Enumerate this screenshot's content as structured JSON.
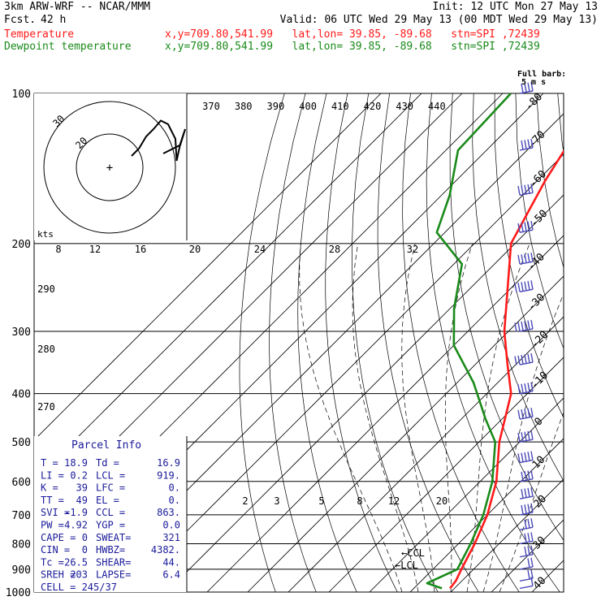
{
  "header": {
    "model": "3km ARW-WRF -- NCAR/MMM",
    "init": "Init: 12 UTC Mon 27 May 13",
    "fcst_label": "Fcst.",
    "fcst_hours": "42 h",
    "valid": "Valid: 06 UTC Wed 29 May 13 (00 MDT Wed 29 May 13)",
    "temp_line_label": "Temperature",
    "dew_line_label": "Dewpoint temperature",
    "loc_text": "x,y=709.80,541.99   lat,lon= 39.85, -89.68   stn=SPI ,72439",
    "barb_note_1": "Full barb:",
    "barb_note_2": "5 m s"
  },
  "colors": {
    "temperature": "#ff1a1a",
    "dewpoint": "#1a8a1a",
    "wind_barbs": "#4a4ab8",
    "grid": "#000000"
  },
  "parcel_info": {
    "title": "Parcel Info",
    "rows": [
      [
        "T  =",
        "18.9",
        "Td =",
        "16.9"
      ],
      [
        "LI =",
        "0.2",
        "LCL =",
        "919."
      ],
      [
        "K  =",
        "39",
        "LFC =",
        "0."
      ],
      [
        "TT =",
        "49",
        "EL  =",
        "0."
      ],
      [
        "SVI =",
        "-1.9",
        "CCL =",
        "863."
      ],
      [
        "PW =",
        "4.92",
        "YGP =",
        "0.0"
      ],
      [
        "CAPE =",
        "0",
        "SWEAT=",
        "321"
      ],
      [
        "CIN  =",
        "0",
        "HWBZ=",
        "4382."
      ],
      [
        "Tc =",
        "26.5",
        "SHEAR=",
        "44."
      ],
      [
        "SREH =",
        "203",
        "LAPSE=",
        "6.4"
      ]
    ],
    "cell": "CELL = 245/37"
  },
  "hodograph": {
    "speed_unit": "kts",
    "ring_labels": [
      "20",
      "30"
    ],
    "theta_e_labels": [
      "370",
      "380",
      "390",
      "400",
      "410",
      "420",
      "430",
      "440"
    ],
    "wind_speed_labels": [
      "8",
      "12",
      "16",
      "20",
      "24",
      "28",
      "32"
    ],
    "theta_labels": [
      "290",
      "280",
      "270"
    ],
    "mixing_ratio_labels": [
      "2",
      "3",
      "5",
      "8",
      "12",
      "20"
    ],
    "marker_labels": [
      "CCL",
      "LCL"
    ],
    "hodo_trace": [
      [
        0.44,
        0.02
      ],
      [
        0.58,
        -0.05
      ],
      [
        0.62,
        -0.18
      ],
      [
        0.58,
        -0.06
      ],
      [
        0.55,
        0.08
      ],
      [
        0.54,
        -0.1
      ],
      [
        0.48,
        -0.22
      ],
      [
        0.42,
        -0.25
      ],
      [
        0.36,
        -0.18
      ],
      [
        0.3,
        -0.12
      ],
      [
        0.24,
        -0.02
      ],
      [
        0.18,
        0.04
      ]
    ]
  },
  "chart_data": {
    "type": "skew-t",
    "y_axis": "pressure (mb)",
    "pressure_levels": [
      100,
      200,
      300,
      400,
      500,
      600,
      700,
      800,
      900,
      1000
    ],
    "isotherm_labels": [
      -80,
      -70,
      -60,
      -50,
      -40,
      -30,
      -20,
      -10,
      0,
      10,
      20,
      30,
      40
    ],
    "ylim": [
      1000,
      100
    ],
    "scale": "log pressure",
    "temperature": {
      "name": "Temperature",
      "p": [
        100,
        150,
        200,
        250,
        300,
        350,
        400,
        500,
        600,
        700,
        800,
        900,
        950,
        983
      ],
      "t": [
        -66,
        -58,
        -51,
        -40,
        -31,
        -22,
        -14,
        -5,
        4,
        10,
        14,
        17,
        18.5,
        18.9
      ]
    },
    "dewpoint": {
      "name": "Dewpoint temperature",
      "p": [
        100,
        130,
        160,
        190,
        220,
        270,
        320,
        380,
        450,
        500,
        600,
        700,
        800,
        900,
        960,
        983
      ],
      "td": [
        -88,
        -87,
        -78,
        -72,
        -58,
        -49,
        -40,
        -26,
        -14,
        -6,
        3,
        9,
        13,
        16,
        12,
        16.9
      ]
    },
    "wind_barbs": {
      "unit": "m s-1",
      "p": [
        100,
        130,
        160,
        190,
        220,
        250,
        300,
        350,
        400,
        450,
        500,
        550,
        600,
        650,
        700,
        750,
        800,
        850,
        900,
        950,
        983
      ],
      "full_barbs": [
        4,
        4,
        5,
        5,
        5,
        6,
        6,
        6,
        5,
        5,
        5,
        5,
        4,
        4,
        4,
        3,
        3,
        3,
        2,
        2,
        1
      ]
    }
  }
}
